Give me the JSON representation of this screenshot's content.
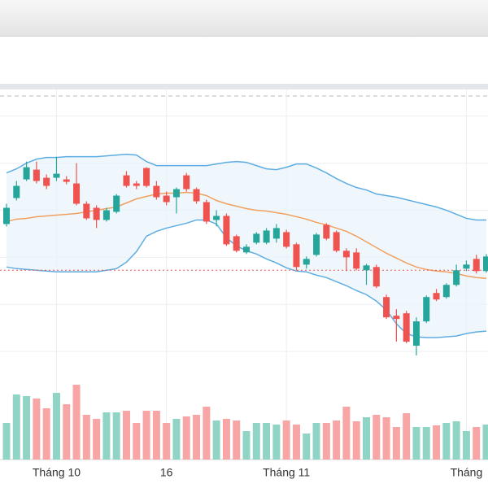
{
  "chart_data": {
    "type": "candlestick",
    "categories": [
      null,
      null,
      null,
      null,
      null,
      "Tháng 10",
      null,
      null,
      null,
      null,
      null,
      null,
      null,
      null,
      null,
      null,
      "16",
      null,
      null,
      null,
      null,
      null,
      null,
      null,
      null,
      null,
      null,
      null,
      "Tháng 11",
      null,
      null,
      null,
      null,
      null,
      null,
      null,
      null,
      null,
      null,
      null,
      null,
      null,
      null,
      null,
      null,
      null,
      "Tháng",
      null,
      null
    ],
    "open": [
      195,
      227,
      250,
      262,
      252,
      252,
      250,
      245,
      220,
      215,
      200,
      210,
      255,
      245,
      264,
      242,
      230,
      228,
      255,
      238,
      222,
      200,
      205,
      180,
      160,
      172,
      172,
      177,
      185,
      170,
      145,
      157,
      194,
      185,
      162,
      160,
      138,
      142,
      105,
      82,
      85,
      45,
      75,
      110,
      105,
      120,
      140,
      152,
      137
    ],
    "high": [
      220,
      248,
      272,
      272,
      256,
      278,
      254,
      270,
      223,
      218,
      215,
      232,
      260,
      248,
      265,
      248,
      235,
      240,
      258,
      240,
      225,
      212,
      208,
      182,
      170,
      185,
      190,
      195,
      188,
      172,
      155,
      184,
      196,
      187,
      165,
      165,
      146,
      145,
      108,
      90,
      88,
      80,
      107,
      115,
      122,
      145,
      150,
      157,
      158
    ],
    "low": [
      192,
      224,
      248,
      245,
      238,
      248,
      244,
      218,
      200,
      190,
      198,
      208,
      240,
      238,
      240,
      225,
      218,
      208,
      235,
      220,
      195,
      192,
      168,
      160,
      158,
      170,
      170,
      172,
      165,
      138,
      140,
      155,
      175,
      160,
      137,
      138,
      120,
      116,
      78,
      50,
      48,
      33,
      73,
      100,
      103,
      118,
      137,
      134,
      135
    ],
    "close": [
      215,
      242,
      265,
      248,
      242,
      257,
      247,
      220,
      202,
      200,
      212,
      230,
      242,
      242,
      242,
      228,
      222,
      238,
      238,
      223,
      198,
      205,
      170,
      162,
      167,
      183,
      187,
      190,
      167,
      142,
      152,
      182,
      177,
      162,
      154,
      140,
      144,
      118,
      80,
      78,
      50,
      75,
      105,
      102,
      120,
      138,
      145,
      137,
      155
    ],
    "up_color": "#26a69a",
    "down_color": "#ef5350",
    "ylim": [
      9,
      352
    ],
    "yticks": [
      38,
      96,
      154,
      212,
      270,
      328
    ],
    "grid": true,
    "price_line": 138,
    "price_line_color": "#ef5350",
    "bands": {
      "upper": [
        258,
        263,
        270,
        275,
        277,
        277,
        278,
        278,
        278,
        278,
        279,
        280,
        281,
        280,
        272,
        267,
        267,
        267,
        267,
        267,
        267,
        269,
        271,
        272,
        271,
        267,
        263,
        262,
        265,
        269,
        269,
        264,
        258,
        251,
        245,
        240,
        237,
        232,
        230,
        228,
        225,
        222,
        219,
        216,
        212,
        207,
        202,
        200,
        200
      ],
      "middle": [
        198,
        201,
        202,
        204,
        205,
        206,
        207,
        208,
        210,
        212,
        214,
        216,
        221,
        226,
        229,
        232,
        233,
        233,
        234,
        233,
        230,
        224,
        220,
        217,
        214,
        212,
        211,
        209,
        207,
        204,
        201,
        197,
        194,
        190,
        186,
        180,
        173,
        166,
        159,
        153,
        147,
        142,
        139,
        137,
        136,
        134,
        131,
        129,
        128
      ],
      "lower": [
        142,
        140,
        139,
        138,
        137,
        136,
        136,
        136,
        136,
        136,
        138,
        140,
        148,
        161,
        180,
        186,
        190,
        193,
        196,
        200,
        200,
        195,
        178,
        168,
        162,
        158,
        152,
        147,
        141,
        137,
        136,
        132,
        129,
        124,
        119,
        113,
        108,
        100,
        89,
        72,
        60,
        56,
        55,
        55,
        56,
        57,
        60,
        62,
        63
      ],
      "band_color": "#5dade2",
      "middle_color": "#f0a060",
      "fill_color": "#e8f3fb"
    },
    "volume": {
      "values": [
        45,
        80,
        78,
        75,
        63,
        82,
        68,
        92,
        55,
        50,
        58,
        58,
        60,
        45,
        60,
        60,
        45,
        50,
        53,
        55,
        65,
        48,
        50,
        48,
        35,
        45,
        45,
        43,
        48,
        43,
        32,
        45,
        45,
        48,
        65,
        47,
        52,
        55,
        52,
        40,
        57,
        40,
        40,
        42,
        45,
        47,
        35,
        40,
        43
      ],
      "ylim": [
        0,
        100
      ],
      "up_color": "#8fd4c4",
      "down_color": "#f7a5a5"
    }
  }
}
